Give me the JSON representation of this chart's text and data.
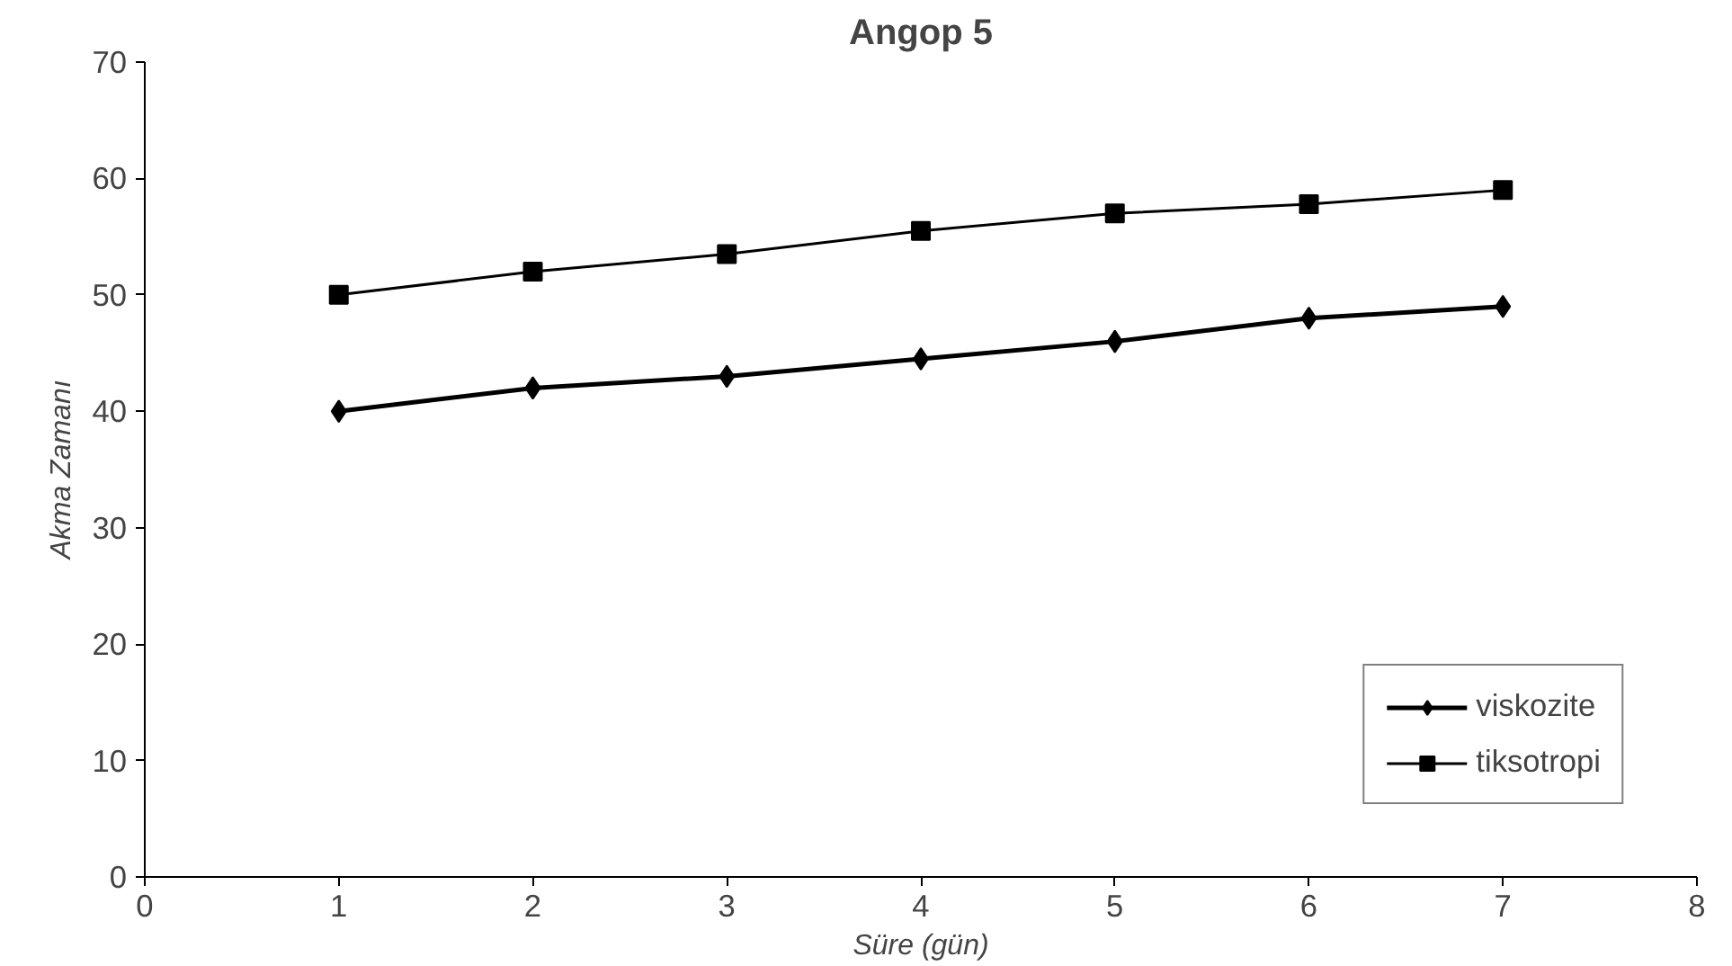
{
  "chart_data": {
    "type": "line",
    "title": "Angop 5",
    "xlabel": "Süre (gün)",
    "ylabel": "Akma Zamanı",
    "x": [
      1,
      2,
      3,
      4,
      5,
      6,
      7
    ],
    "series": [
      {
        "name": "viskozite",
        "color": "#000000",
        "marker": "diamond",
        "values": [
          40,
          42,
          43,
          44.5,
          46,
          48,
          49
        ]
      },
      {
        "name": "tiksotropi",
        "color": "#000000",
        "marker": "square",
        "values": [
          50,
          52,
          53.5,
          55.5,
          57,
          57.8,
          59
        ]
      }
    ],
    "xlim": [
      0,
      8
    ],
    "xticks": [
      0,
      1,
      2,
      3,
      4,
      5,
      6,
      7,
      8
    ],
    "ylim": [
      0,
      70
    ],
    "yticks": [
      0,
      10,
      20,
      30,
      40,
      50,
      60,
      70
    ],
    "grid": false,
    "legend": "bottom right",
    "line_style": "solid"
  }
}
